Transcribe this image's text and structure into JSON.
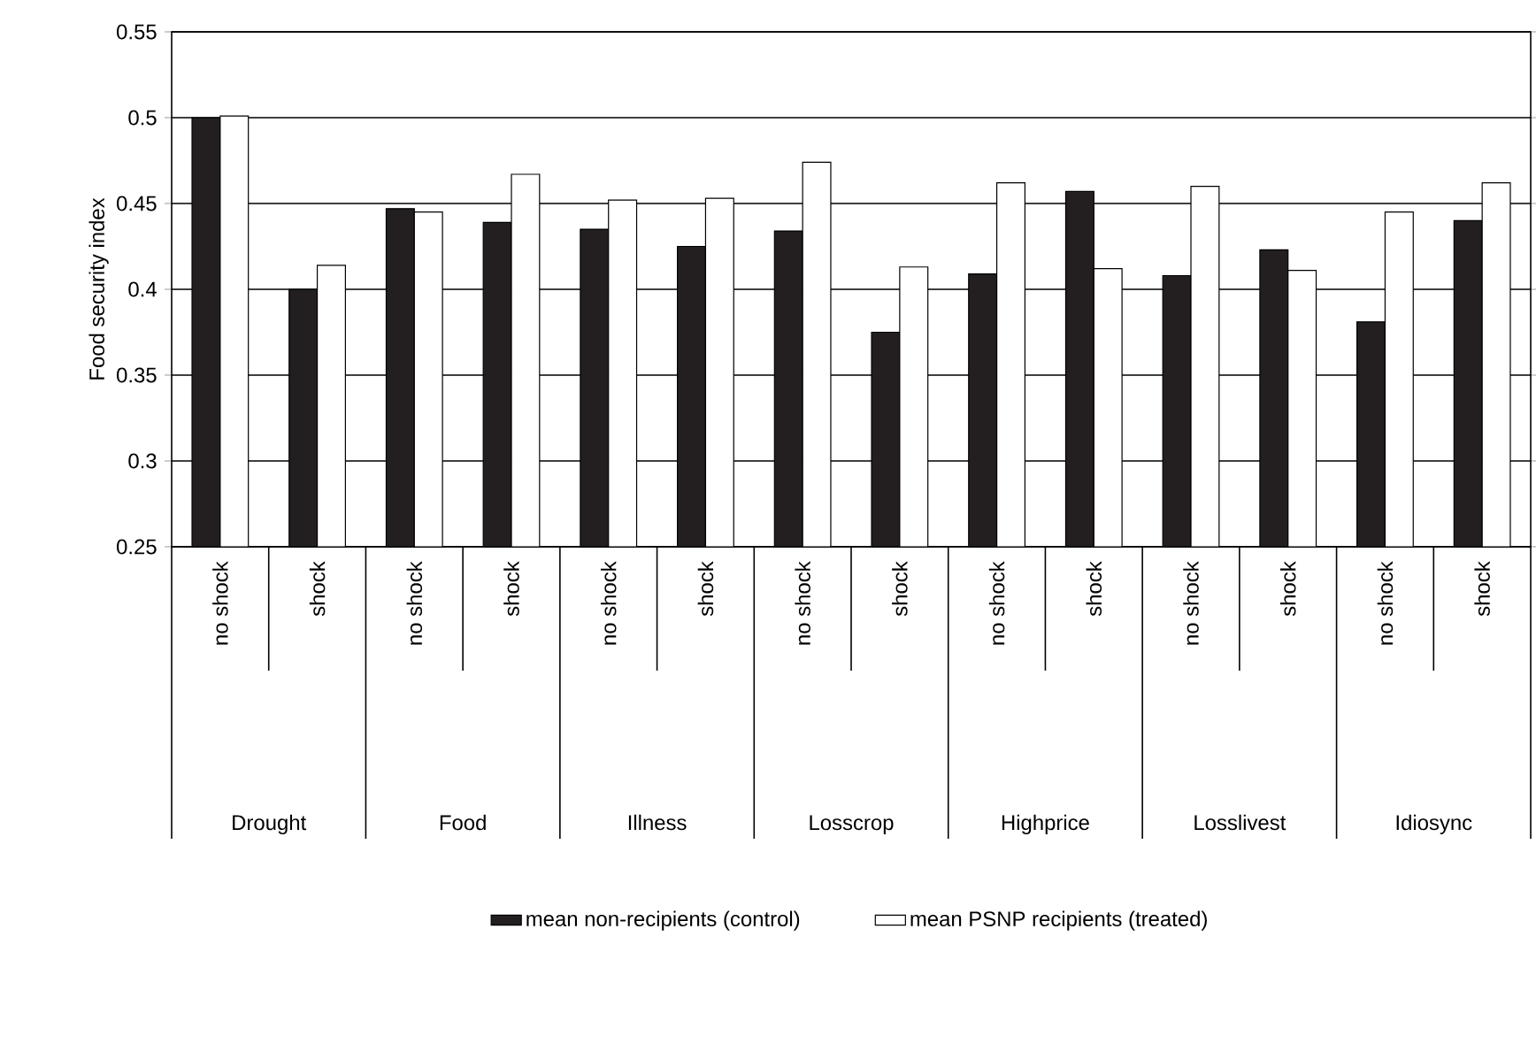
{
  "chart_data": {
    "type": "bar",
    "ylabel": "Food security index",
    "categories": [
      "no shock",
      "shock",
      "no shock",
      "shock",
      "no shock",
      "shock",
      "no shock",
      "shock",
      "no shock",
      "shock",
      "no shock",
      "shock",
      "no shock",
      "shock"
    ],
    "series": [
      {
        "name": "mean non-recipients (control)",
        "color": "#231f20",
        "values": [
          0.5,
          0.4,
          0.447,
          0.439,
          0.435,
          0.425,
          0.434,
          0.375,
          0.409,
          0.457,
          0.408,
          0.423,
          0.381,
          0.44
        ]
      },
      {
        "name": "mean PSNP recipients (treated)",
        "color": "#ffffff",
        "values": [
          0.501,
          0.414,
          0.445,
          0.467,
          0.452,
          0.453,
          0.474,
          0.413,
          0.462,
          0.412,
          0.46,
          0.411,
          0.445,
          0.462
        ]
      }
    ],
    "annotations": [
      "Drought",
      "Food",
      "Illness",
      "Losscrop",
      "Highprice",
      "Losslivest",
      "Idiosync"
    ],
    "ylim": [
      0.25,
      0.55
    ],
    "yticks": [
      0.25,
      0.3,
      0.35,
      0.4,
      0.45,
      0.5,
      0.55
    ],
    "grid": "y",
    "legend": "bottom"
  }
}
